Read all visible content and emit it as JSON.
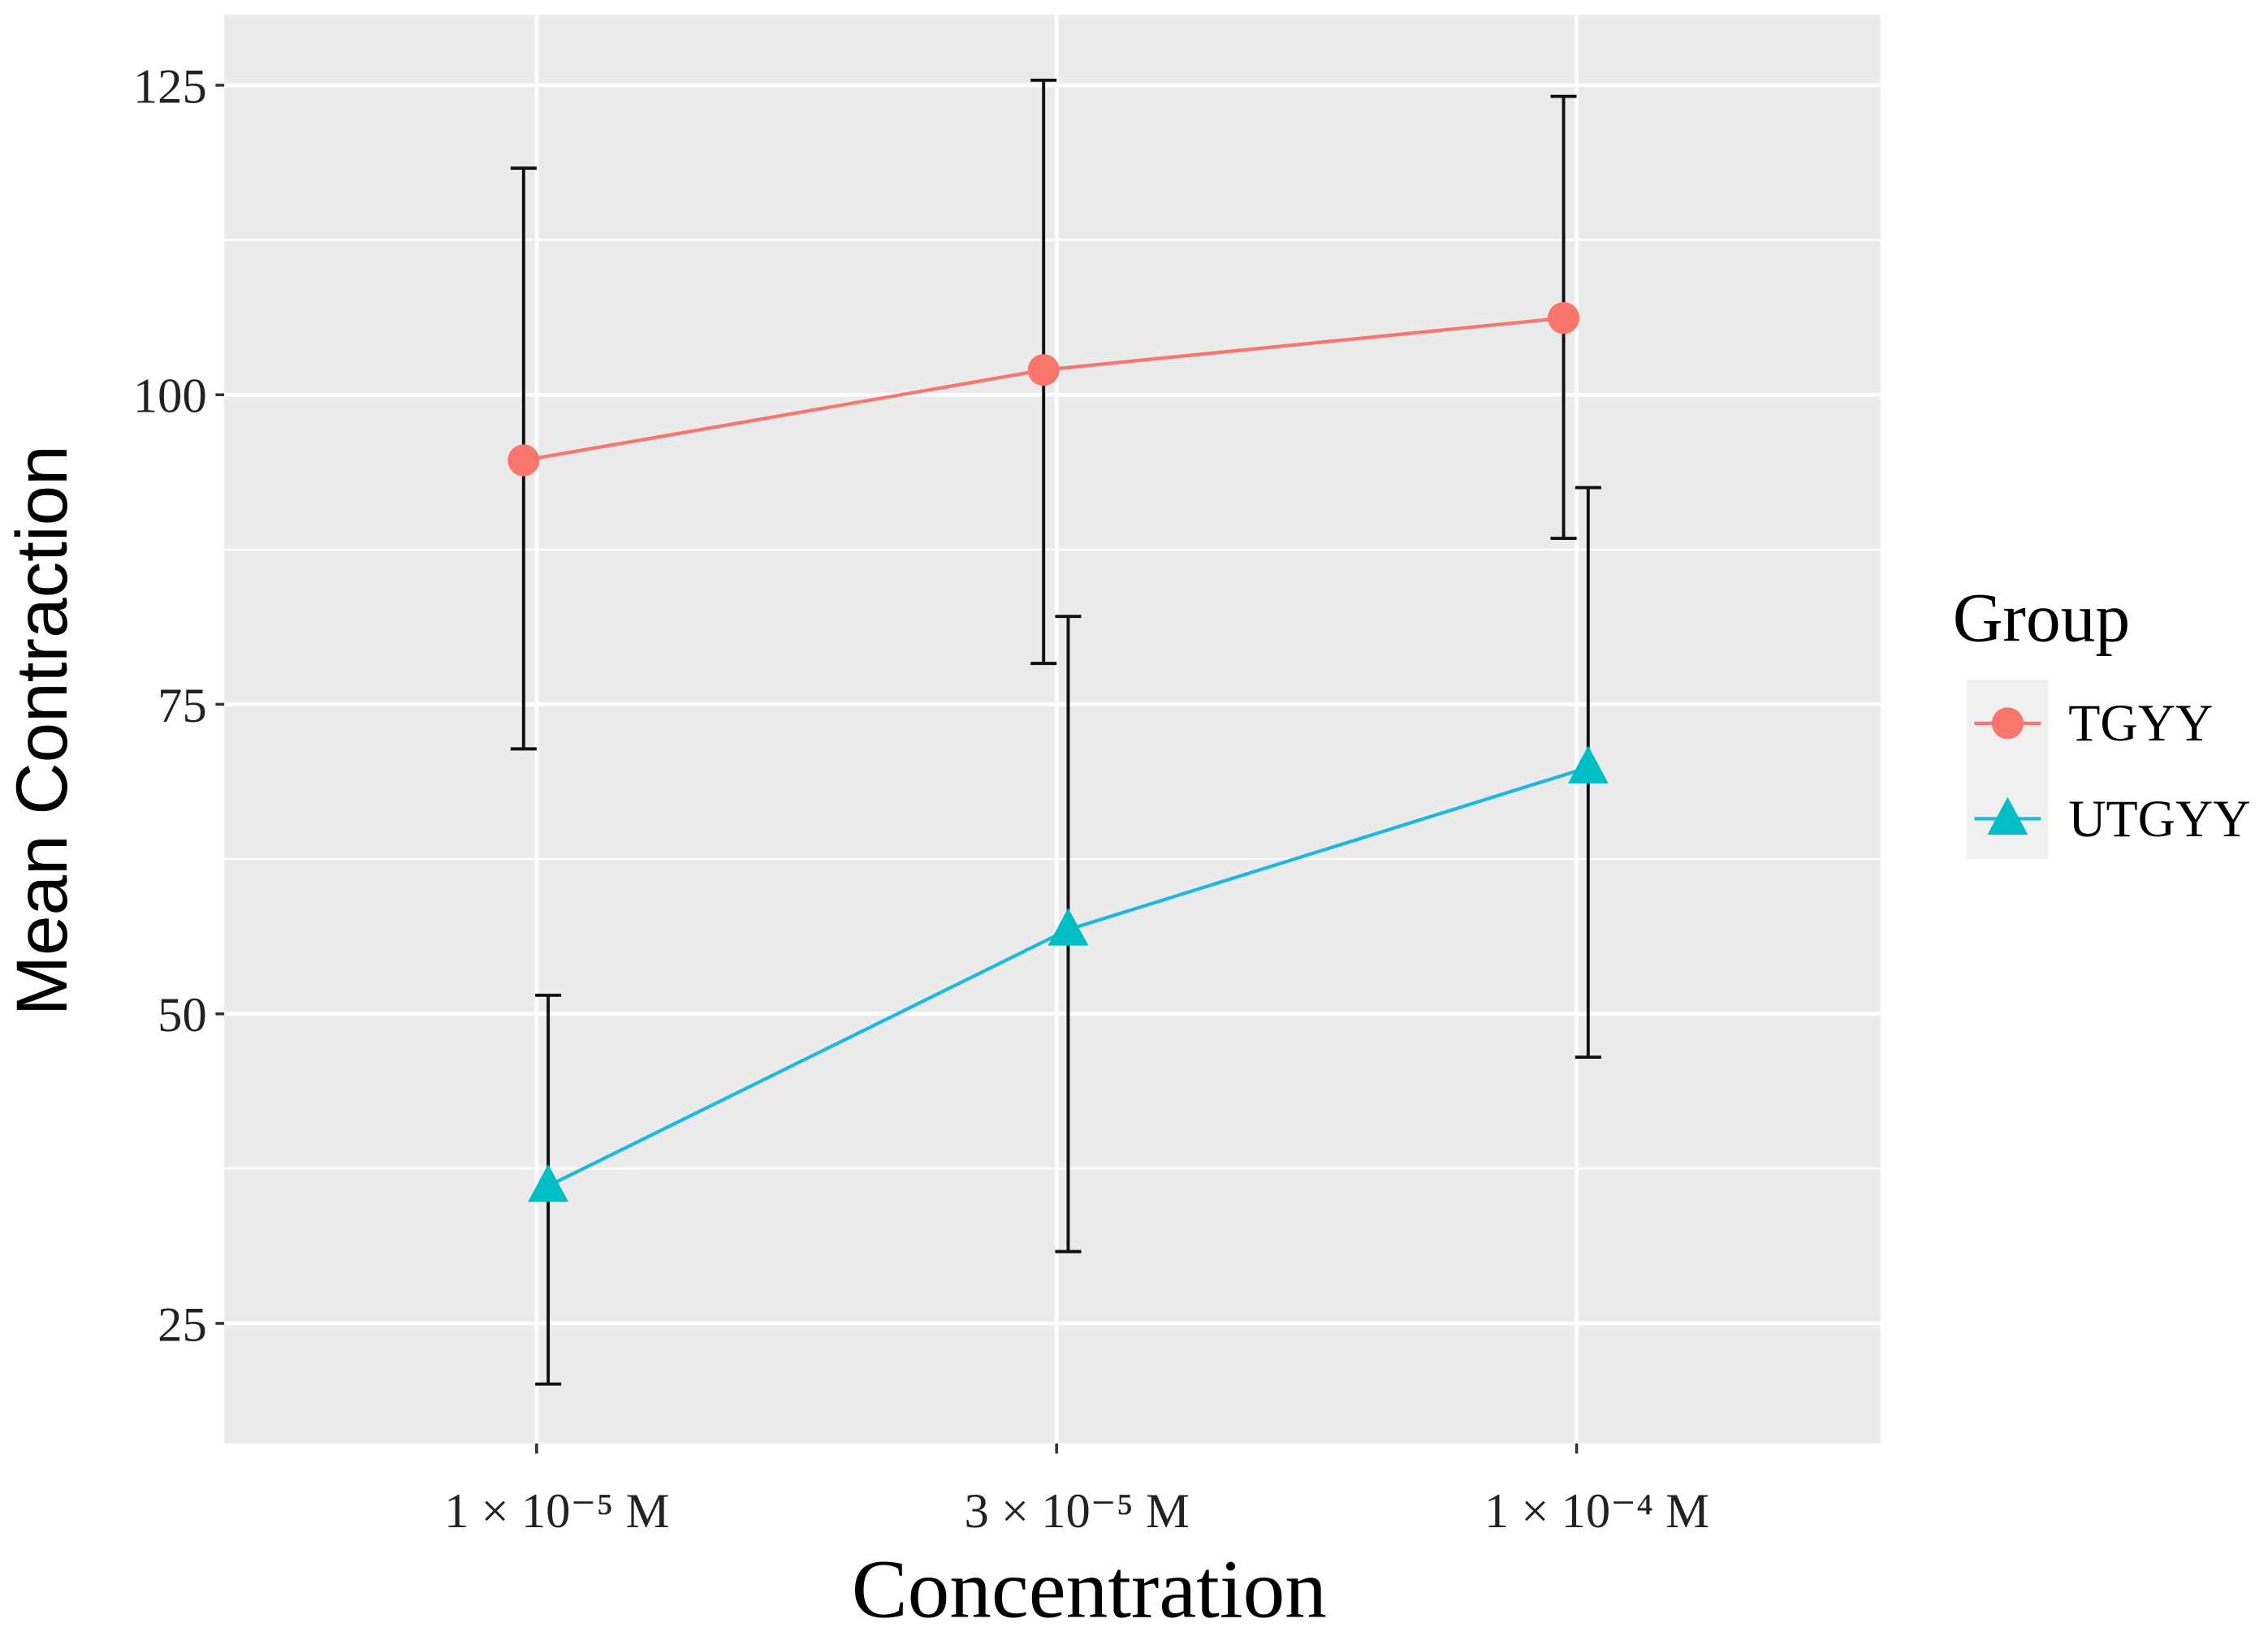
{
  "chart_data": {
    "type": "line",
    "xlabel": "Concentration",
    "ylabel": "Mean Contraction",
    "categories": [
      "1 × 10⁻⁵ M",
      "3 × 10⁻⁵ M",
      "1 × 10⁻⁴ M"
    ],
    "y_ticks": [
      25,
      50,
      75,
      100,
      125
    ],
    "ylim": [
      15.3,
      130.7
    ],
    "grid": true,
    "legend": {
      "title": "Group",
      "placement": "right"
    },
    "series": [
      {
        "name": "TGYY",
        "color": "#F8766D",
        "marker": "circle",
        "values": [
          94.7,
          102.0,
          106.2
        ],
        "error_low": [
          71.4,
          78.3,
          88.4
        ],
        "error_high": [
          118.3,
          125.4,
          124.1
        ]
      },
      {
        "name": "UTGYY",
        "color": "#00BFC4",
        "line_color": "#1FB8E0",
        "marker": "triangle",
        "values": [
          36.1,
          56.8,
          69.9
        ],
        "error_low": [
          20.1,
          30.8,
          46.5
        ],
        "error_high": [
          51.5,
          82.1,
          92.5
        ]
      }
    ],
    "panel_background": "#EBEBEB",
    "grid_color": "#FFFFFF"
  }
}
